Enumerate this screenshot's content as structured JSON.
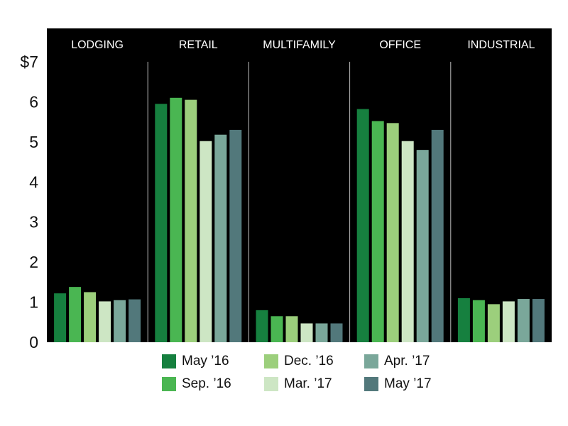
{
  "chart_data": {
    "type": "bar",
    "title": "",
    "xlabel": "",
    "ylabel": "",
    "ylim": [
      0,
      7
    ],
    "y_tick_labels": [
      "0",
      "1",
      "2",
      "3",
      "4",
      "5",
      "6",
      "$7"
    ],
    "grid": false,
    "legend_position": "bottom",
    "background": "#000000",
    "categories": [
      "LODGING",
      "RETAIL",
      "MULTIFAMILY",
      "OFFICE",
      "INDUSTRIAL"
    ],
    "series": [
      {
        "name": "May ’16",
        "color": "#16803f",
        "values": [
          1.22,
          5.95,
          0.8,
          5.82,
          1.1
        ]
      },
      {
        "name": "Sep. ’16",
        "color": "#4ab652",
        "values": [
          1.38,
          6.1,
          0.65,
          5.52,
          1.05
        ]
      },
      {
        "name": "Dec. ’16",
        "color": "#9ccf7c",
        "values": [
          1.25,
          6.05,
          0.65,
          5.47,
          0.95
        ]
      },
      {
        "name": "Mar. ’17",
        "color": "#cde6c4",
        "values": [
          1.02,
          5.02,
          0.47,
          5.02,
          1.02
        ]
      },
      {
        "name": "Apr. ’17",
        "color": "#7aa79a",
        "values": [
          1.05,
          5.18,
          0.47,
          4.8,
          1.08
        ]
      },
      {
        "name": "May ’17",
        "color": "#52787b",
        "values": [
          1.07,
          5.3,
          0.47,
          5.3,
          1.08
        ]
      }
    ]
  }
}
